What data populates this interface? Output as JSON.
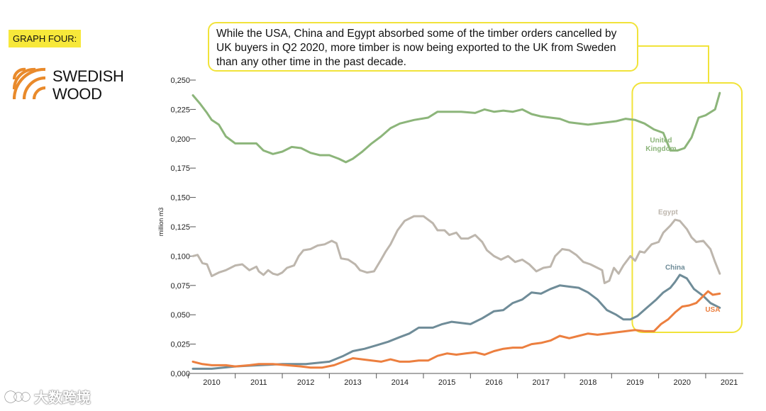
{
  "header": {
    "tag_label": "GRAPH FOUR:"
  },
  "brand": {
    "line1": "SWEDISH",
    "line2": "WOOD"
  },
  "callout": {
    "text": "While the USA, China and Egypt absorbed some of the timber orders cancelled by UK buyers in Q2 2020, more timber is now being exported to the UK from Sweden than any other time in the past decade."
  },
  "watermark": {
    "text": "大数跨境"
  },
  "colors": {
    "accent_yellow": "#f1e33a",
    "uk": "#8cb57a",
    "egypt": "#bdb6ad",
    "china": "#6f8c98",
    "usa": "#ec7f3f"
  },
  "chart_data": {
    "type": "line",
    "ylabel": "million m3",
    "ylim": [
      0,
      0.25
    ],
    "y_ticks": [
      "0,000",
      "0,025",
      "0,050",
      "0,075",
      "0,100",
      "0,125",
      "0,150",
      "0,175",
      "0,200",
      "0,225",
      "0,250"
    ],
    "x_ticks": [
      "2010",
      "2011",
      "2012",
      "2013",
      "2014",
      "2015",
      "2016",
      "2017",
      "2018",
      "2019",
      "2020",
      "2021"
    ],
    "x_start": 2009.6,
    "x_end": 2021.3,
    "highlight_range": [
      2019.0,
      2021.3
    ],
    "series": [
      {
        "name": "United Kingdom",
        "label_lines": [
          "United",
          "Kingdom"
        ],
        "color": "#8cb57a",
        "points": [
          [
            2009.6,
            0.237
          ],
          [
            2009.75,
            0.23
          ],
          [
            2009.9,
            0.222
          ],
          [
            2010.0,
            0.216
          ],
          [
            2010.15,
            0.212
          ],
          [
            2010.3,
            0.202
          ],
          [
            2010.5,
            0.196
          ],
          [
            2010.75,
            0.196
          ],
          [
            2010.95,
            0.196
          ],
          [
            2011.1,
            0.19
          ],
          [
            2011.3,
            0.187
          ],
          [
            2011.5,
            0.189
          ],
          [
            2011.7,
            0.193
          ],
          [
            2011.9,
            0.192
          ],
          [
            2012.1,
            0.188
          ],
          [
            2012.3,
            0.186
          ],
          [
            2012.5,
            0.186
          ],
          [
            2012.7,
            0.183
          ],
          [
            2012.85,
            0.18
          ],
          [
            2013.0,
            0.183
          ],
          [
            2013.2,
            0.189
          ],
          [
            2013.4,
            0.196
          ],
          [
            2013.6,
            0.202
          ],
          [
            2013.8,
            0.209
          ],
          [
            2014.0,
            0.213
          ],
          [
            2014.3,
            0.216
          ],
          [
            2014.6,
            0.218
          ],
          [
            2014.8,
            0.223
          ],
          [
            2015.0,
            0.223
          ],
          [
            2015.3,
            0.223
          ],
          [
            2015.6,
            0.222
          ],
          [
            2015.8,
            0.225
          ],
          [
            2016.0,
            0.223
          ],
          [
            2016.2,
            0.224
          ],
          [
            2016.4,
            0.223
          ],
          [
            2016.6,
            0.225
          ],
          [
            2016.8,
            0.221
          ],
          [
            2017.0,
            0.219
          ],
          [
            2017.2,
            0.218
          ],
          [
            2017.4,
            0.217
          ],
          [
            2017.6,
            0.214
          ],
          [
            2017.8,
            0.213
          ],
          [
            2018.0,
            0.212
          ],
          [
            2018.2,
            0.213
          ],
          [
            2018.4,
            0.214
          ],
          [
            2018.6,
            0.215
          ],
          [
            2018.8,
            0.217
          ],
          [
            2019.0,
            0.216
          ],
          [
            2019.2,
            0.213
          ],
          [
            2019.4,
            0.208
          ],
          [
            2019.6,
            0.205
          ],
          [
            2019.75,
            0.19
          ],
          [
            2019.9,
            0.19
          ],
          [
            2020.05,
            0.192
          ],
          [
            2020.2,
            0.201
          ],
          [
            2020.35,
            0.218
          ],
          [
            2020.5,
            0.22
          ],
          [
            2020.7,
            0.225
          ],
          [
            2020.8,
            0.239
          ]
        ]
      },
      {
        "name": "Egypt",
        "label_lines": [
          "Egypt"
        ],
        "color": "#bdb6ad",
        "points": [
          [
            2009.6,
            0.1
          ],
          [
            2009.7,
            0.101
          ],
          [
            2009.8,
            0.094
          ],
          [
            2009.9,
            0.093
          ],
          [
            2010.0,
            0.083
          ],
          [
            2010.15,
            0.086
          ],
          [
            2010.3,
            0.088
          ],
          [
            2010.5,
            0.092
          ],
          [
            2010.65,
            0.093
          ],
          [
            2010.8,
            0.088
          ],
          [
            2010.95,
            0.091
          ],
          [
            2011.0,
            0.087
          ],
          [
            2011.1,
            0.084
          ],
          [
            2011.2,
            0.088
          ],
          [
            2011.3,
            0.085
          ],
          [
            2011.4,
            0.084
          ],
          [
            2011.5,
            0.086
          ],
          [
            2011.6,
            0.09
          ],
          [
            2011.75,
            0.092
          ],
          [
            2011.85,
            0.1
          ],
          [
            2011.95,
            0.105
          ],
          [
            2012.1,
            0.106
          ],
          [
            2012.25,
            0.109
          ],
          [
            2012.4,
            0.11
          ],
          [
            2012.55,
            0.113
          ],
          [
            2012.65,
            0.111
          ],
          [
            2012.75,
            0.098
          ],
          [
            2012.9,
            0.097
          ],
          [
            2013.05,
            0.093
          ],
          [
            2013.15,
            0.088
          ],
          [
            2013.3,
            0.086
          ],
          [
            2013.45,
            0.087
          ],
          [
            2013.6,
            0.097
          ],
          [
            2013.7,
            0.104
          ],
          [
            2013.8,
            0.11
          ],
          [
            2013.95,
            0.122
          ],
          [
            2014.1,
            0.13
          ],
          [
            2014.3,
            0.134
          ],
          [
            2014.5,
            0.134
          ],
          [
            2014.7,
            0.128
          ],
          [
            2014.8,
            0.122
          ],
          [
            2014.95,
            0.122
          ],
          [
            2015.05,
            0.118
          ],
          [
            2015.2,
            0.12
          ],
          [
            2015.3,
            0.115
          ],
          [
            2015.45,
            0.115
          ],
          [
            2015.6,
            0.118
          ],
          [
            2015.75,
            0.112
          ],
          [
            2015.85,
            0.105
          ],
          [
            2016.0,
            0.1
          ],
          [
            2016.15,
            0.097
          ],
          [
            2016.3,
            0.1
          ],
          [
            2016.45,
            0.095
          ],
          [
            2016.6,
            0.097
          ],
          [
            2016.75,
            0.093
          ],
          [
            2016.9,
            0.087
          ],
          [
            2017.05,
            0.09
          ],
          [
            2017.2,
            0.091
          ],
          [
            2017.3,
            0.1
          ],
          [
            2017.45,
            0.106
          ],
          [
            2017.6,
            0.105
          ],
          [
            2017.75,
            0.101
          ],
          [
            2017.9,
            0.095
          ],
          [
            2018.05,
            0.093
          ],
          [
            2018.2,
            0.09
          ],
          [
            2018.3,
            0.088
          ],
          [
            2018.35,
            0.077
          ],
          [
            2018.45,
            0.079
          ],
          [
            2018.55,
            0.09
          ],
          [
            2018.65,
            0.085
          ],
          [
            2018.75,
            0.092
          ],
          [
            2018.9,
            0.1
          ],
          [
            2019.0,
            0.096
          ],
          [
            2019.1,
            0.104
          ],
          [
            2019.2,
            0.103
          ],
          [
            2019.35,
            0.11
          ],
          [
            2019.5,
            0.112
          ],
          [
            2019.6,
            0.12
          ],
          [
            2019.75,
            0.126
          ],
          [
            2019.85,
            0.131
          ],
          [
            2019.95,
            0.13
          ],
          [
            2020.1,
            0.123
          ],
          [
            2020.2,
            0.116
          ],
          [
            2020.3,
            0.112
          ],
          [
            2020.45,
            0.113
          ],
          [
            2020.6,
            0.106
          ],
          [
            2020.7,
            0.095
          ],
          [
            2020.8,
            0.085
          ]
        ]
      },
      {
        "name": "China",
        "label_lines": [
          "China"
        ],
        "color": "#6f8c98",
        "points": [
          [
            2009.6,
            0.004
          ],
          [
            2010.0,
            0.004
          ],
          [
            2010.5,
            0.006
          ],
          [
            2011.0,
            0.007
          ],
          [
            2011.5,
            0.008
          ],
          [
            2012.0,
            0.008
          ],
          [
            2012.5,
            0.01
          ],
          [
            2012.8,
            0.015
          ],
          [
            2013.0,
            0.019
          ],
          [
            2013.25,
            0.021
          ],
          [
            2013.5,
            0.024
          ],
          [
            2013.75,
            0.027
          ],
          [
            2014.0,
            0.031
          ],
          [
            2014.2,
            0.034
          ],
          [
            2014.4,
            0.039
          ],
          [
            2014.7,
            0.039
          ],
          [
            2014.9,
            0.042
          ],
          [
            2015.1,
            0.044
          ],
          [
            2015.3,
            0.043
          ],
          [
            2015.5,
            0.042
          ],
          [
            2015.75,
            0.047
          ],
          [
            2016.0,
            0.053
          ],
          [
            2016.2,
            0.054
          ],
          [
            2016.4,
            0.06
          ],
          [
            2016.6,
            0.063
          ],
          [
            2016.8,
            0.069
          ],
          [
            2017.0,
            0.068
          ],
          [
            2017.2,
            0.072
          ],
          [
            2017.4,
            0.075
          ],
          [
            2017.6,
            0.074
          ],
          [
            2017.8,
            0.073
          ],
          [
            2018.0,
            0.069
          ],
          [
            2018.2,
            0.063
          ],
          [
            2018.4,
            0.054
          ],
          [
            2018.6,
            0.05
          ],
          [
            2018.75,
            0.046
          ],
          [
            2018.9,
            0.046
          ],
          [
            2019.05,
            0.049
          ],
          [
            2019.25,
            0.056
          ],
          [
            2019.45,
            0.063
          ],
          [
            2019.6,
            0.069
          ],
          [
            2019.75,
            0.073
          ],
          [
            2019.85,
            0.078
          ],
          [
            2019.95,
            0.084
          ],
          [
            2020.1,
            0.081
          ],
          [
            2020.25,
            0.072
          ],
          [
            2020.45,
            0.066
          ],
          [
            2020.6,
            0.06
          ],
          [
            2020.8,
            0.056
          ]
        ]
      },
      {
        "name": "USA",
        "label_lines": [
          "USA"
        ],
        "color": "#ec7f3f",
        "points": [
          [
            2009.6,
            0.01
          ],
          [
            2009.8,
            0.008
          ],
          [
            2010.0,
            0.007
          ],
          [
            2010.3,
            0.007
          ],
          [
            2010.5,
            0.006
          ],
          [
            2010.8,
            0.007
          ],
          [
            2011.0,
            0.008
          ],
          [
            2011.3,
            0.008
          ],
          [
            2011.6,
            0.007
          ],
          [
            2011.9,
            0.006
          ],
          [
            2012.1,
            0.005
          ],
          [
            2012.35,
            0.005
          ],
          [
            2012.6,
            0.007
          ],
          [
            2012.8,
            0.01
          ],
          [
            2013.0,
            0.013
          ],
          [
            2013.2,
            0.012
          ],
          [
            2013.4,
            0.011
          ],
          [
            2013.6,
            0.01
          ],
          [
            2013.8,
            0.012
          ],
          [
            2014.0,
            0.01
          ],
          [
            2014.2,
            0.01
          ],
          [
            2014.4,
            0.011
          ],
          [
            2014.6,
            0.011
          ],
          [
            2014.8,
            0.015
          ],
          [
            2015.0,
            0.017
          ],
          [
            2015.2,
            0.016
          ],
          [
            2015.4,
            0.017
          ],
          [
            2015.6,
            0.018
          ],
          [
            2015.8,
            0.016
          ],
          [
            2016.0,
            0.019
          ],
          [
            2016.2,
            0.021
          ],
          [
            2016.4,
            0.022
          ],
          [
            2016.6,
            0.022
          ],
          [
            2016.8,
            0.025
          ],
          [
            2017.0,
            0.026
          ],
          [
            2017.2,
            0.028
          ],
          [
            2017.4,
            0.032
          ],
          [
            2017.6,
            0.03
          ],
          [
            2017.8,
            0.032
          ],
          [
            2018.0,
            0.034
          ],
          [
            2018.2,
            0.033
          ],
          [
            2018.4,
            0.034
          ],
          [
            2018.6,
            0.035
          ],
          [
            2018.8,
            0.036
          ],
          [
            2019.0,
            0.037
          ],
          [
            2019.2,
            0.036
          ],
          [
            2019.4,
            0.036
          ],
          [
            2019.55,
            0.042
          ],
          [
            2019.7,
            0.046
          ],
          [
            2019.85,
            0.052
          ],
          [
            2020.0,
            0.057
          ],
          [
            2020.15,
            0.058
          ],
          [
            2020.3,
            0.06
          ],
          [
            2020.45,
            0.066
          ],
          [
            2020.55,
            0.07
          ],
          [
            2020.65,
            0.067
          ],
          [
            2020.8,
            0.068
          ]
        ]
      }
    ]
  }
}
